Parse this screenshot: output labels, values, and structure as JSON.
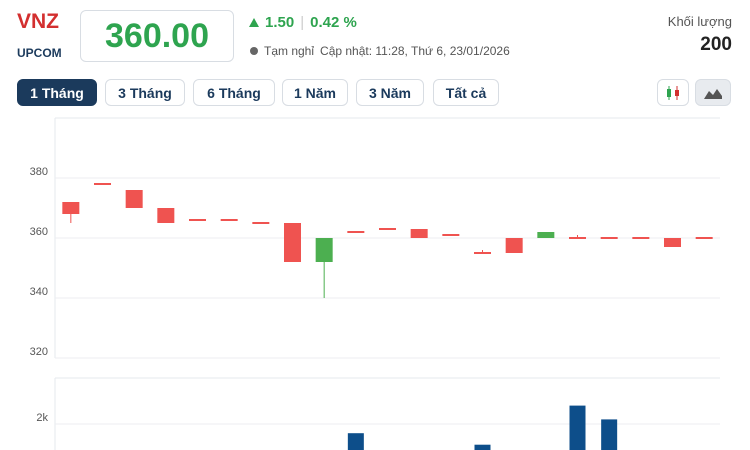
{
  "header": {
    "symbol": "VNZ",
    "exchange": "UPCOM",
    "price": "360.00",
    "change": "1.50",
    "change_pct": "0.42 %",
    "status": "Tạm nghỉ",
    "updated": "Cập nhật: 11:28, Thứ 6, 23/01/2026",
    "volume_label": "Khối lượng",
    "volume": "200"
  },
  "tabs": {
    "items": [
      "1 Tháng",
      "3 Tháng",
      "6 Tháng",
      "1 Năm",
      "3 Năm",
      "Tất cả"
    ],
    "active": 0
  },
  "chart_data": [
    {
      "type": "candlestick",
      "up_color": "#4caf50",
      "down_color": "#ef5350",
      "grid": true,
      "ylim": [
        320,
        400
      ],
      "yticks": [
        320,
        340,
        360,
        380
      ],
      "open": [
        372,
        378,
        376,
        370,
        366,
        366,
        365,
        365,
        352,
        362,
        363,
        363,
        361,
        355,
        360,
        360,
        360,
        360,
        360,
        360,
        360
      ],
      "high": [
        372,
        378,
        376,
        370,
        366,
        366,
        365,
        365,
        360,
        362,
        363,
        363,
        361,
        356,
        360,
        362,
        361,
        360,
        360,
        360,
        360
      ],
      "low": [
        365,
        378,
        370,
        365,
        366,
        366,
        365,
        352,
        340,
        362,
        363,
        360,
        361,
        355,
        355,
        360,
        360,
        360,
        360,
        357,
        360
      ],
      "close": [
        368,
        378,
        370,
        365,
        366,
        366,
        365,
        352,
        360,
        362,
        363,
        360,
        361,
        355,
        355,
        362,
        360,
        360,
        360,
        357,
        360
      ]
    },
    {
      "type": "bar",
      "color": "#0d4e8a",
      "grid": true,
      "ylim": [
        0,
        4000
      ],
      "yticks": [
        {
          "value": 2000,
          "label": "2k"
        }
      ],
      "values": [
        null,
        null,
        null,
        null,
        null,
        null,
        null,
        null,
        null,
        1600,
        null,
        null,
        null,
        1100,
        null,
        null,
        2800,
        2200,
        null,
        null,
        null
      ]
    }
  ]
}
